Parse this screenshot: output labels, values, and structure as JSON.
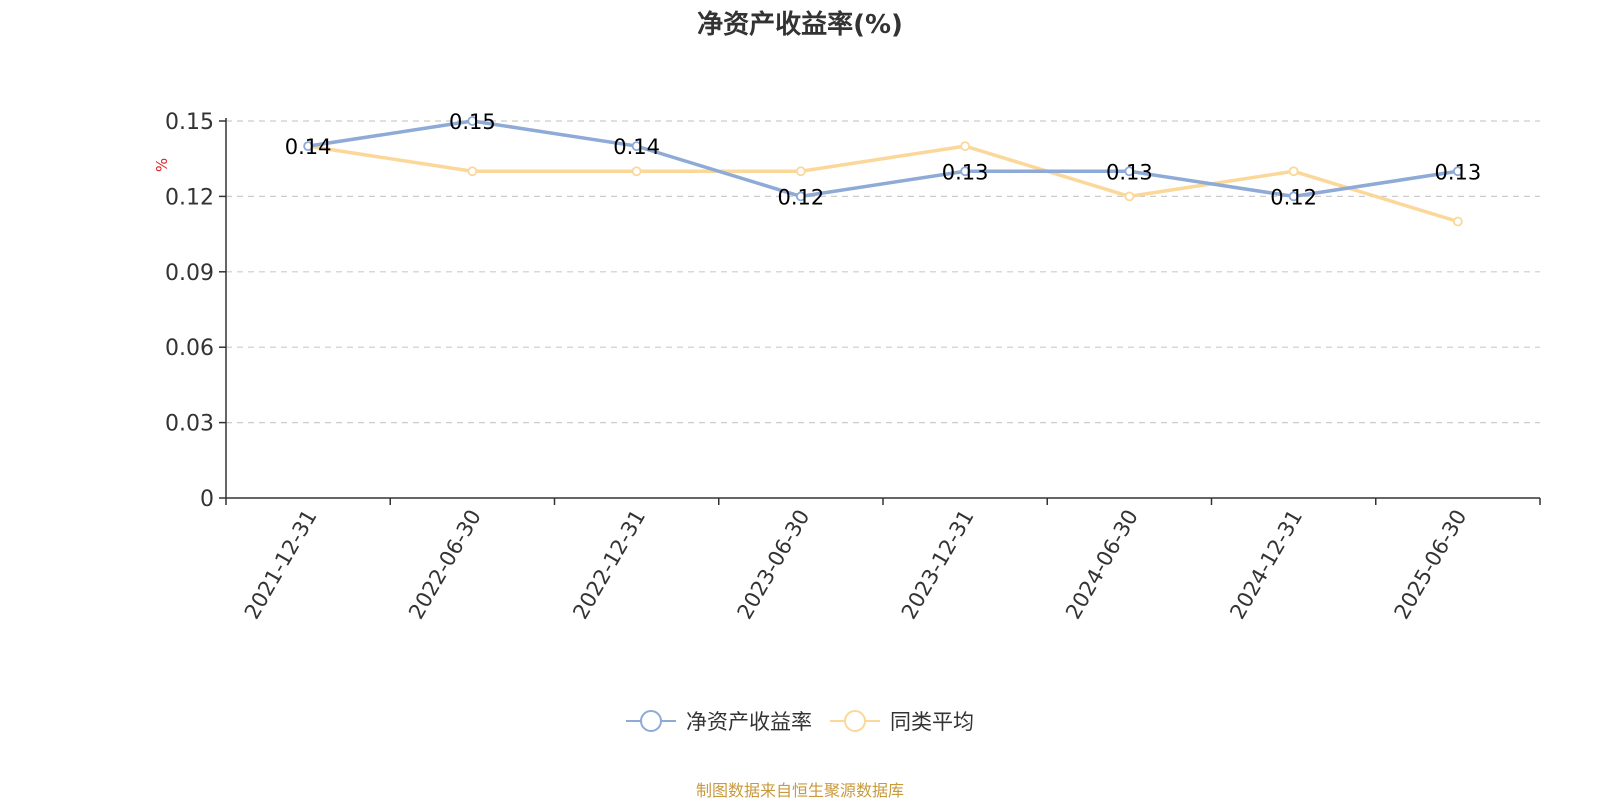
{
  "chart_data": {
    "type": "line",
    "title": "净资产收益率(%)",
    "ylabel": "%",
    "categories": [
      "2021-12-31",
      "2022-06-30",
      "2022-12-31",
      "2023-06-30",
      "2023-12-31",
      "2024-06-30",
      "2024-12-31",
      "2025-06-30"
    ],
    "yticks": [
      "0",
      "0.03",
      "0.06",
      "0.09",
      "0.12",
      "0.15"
    ],
    "ylim": [
      0,
      0.15
    ],
    "grid": "horizontal dashed",
    "legend_position": "bottom",
    "series": [
      {
        "name": "净资产收益率",
        "color": "#8eaad6",
        "values": [
          0.14,
          0.15,
          0.14,
          0.12,
          0.13,
          0.13,
          0.12,
          0.13
        ],
        "data_labels": true
      },
      {
        "name": "同类平均",
        "color": "#fbd89a",
        "values": [
          0.14,
          0.13,
          0.13,
          0.13,
          0.14,
          0.12,
          0.13,
          0.11
        ],
        "data_labels": false
      }
    ]
  },
  "source_note": "制图数据来自恒生聚源数据库"
}
